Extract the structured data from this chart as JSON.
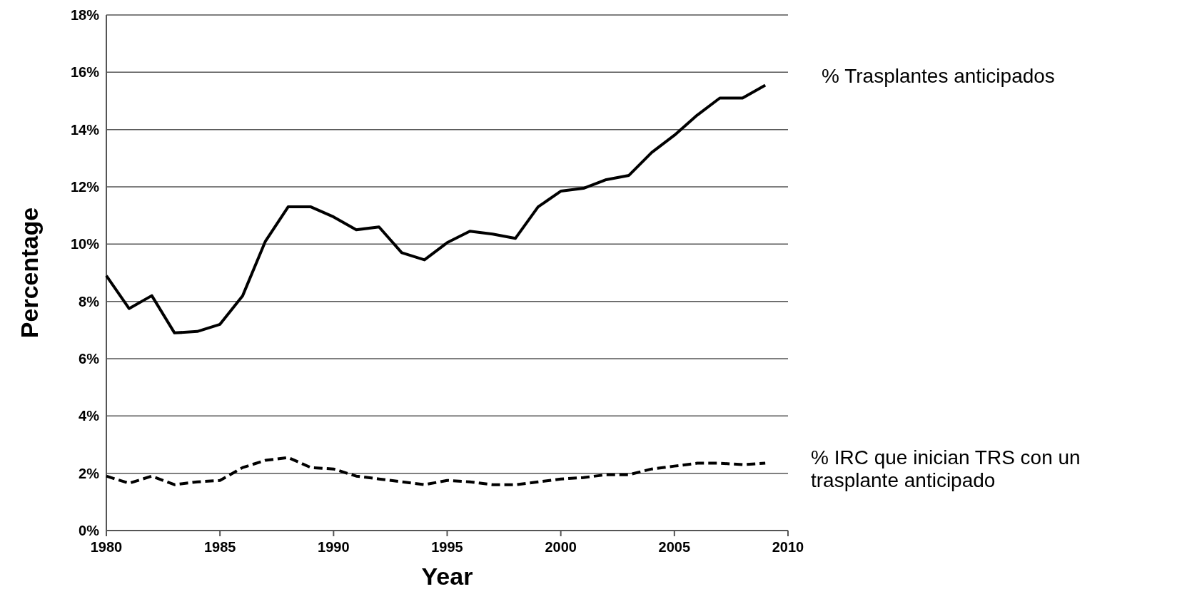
{
  "chart_data": {
    "type": "line",
    "xlabel": "Year",
    "ylabel": "Percentage",
    "x": [
      1980,
      1981,
      1982,
      1983,
      1984,
      1985,
      1986,
      1987,
      1988,
      1989,
      1990,
      1991,
      1992,
      1993,
      1994,
      1995,
      1996,
      1997,
      1998,
      1999,
      2000,
      2001,
      2002,
      2003,
      2004,
      2005,
      2006,
      2007,
      2008,
      2009
    ],
    "series": [
      {
        "name": "% Trasplantes anticipados",
        "color": "#000000",
        "line_style": "solid",
        "values": [
          8.9,
          7.75,
          8.2,
          6.9,
          6.95,
          7.2,
          8.2,
          10.1,
          11.3,
          11.3,
          10.95,
          10.5,
          10.6,
          9.7,
          9.45,
          10.05,
          10.45,
          10.35,
          10.2,
          11.3,
          11.85,
          11.95,
          12.25,
          12.4,
          13.2,
          13.8,
          14.5,
          15.1,
          15.1,
          15.55
        ]
      },
      {
        "name": "% IRC que inician TRS con un trasplante anticipado",
        "color": "#000000",
        "line_style": "dashed",
        "values": [
          1.9,
          1.65,
          1.9,
          1.6,
          1.7,
          1.75,
          2.2,
          2.45,
          2.55,
          2.2,
          2.15,
          1.9,
          1.8,
          1.7,
          1.6,
          1.75,
          1.7,
          1.6,
          1.6,
          1.7,
          1.8,
          1.85,
          1.95,
          1.95,
          2.15,
          2.25,
          2.35,
          2.35,
          2.3,
          2.35
        ]
      }
    ],
    "xlim": [
      1980,
      2010
    ],
    "xticks": [
      1980,
      1985,
      1990,
      1995,
      2000,
      2005,
      2010
    ],
    "ylim": [
      0,
      18
    ],
    "yticks": [
      {
        "value": 0,
        "label": "0%"
      },
      {
        "value": 2,
        "label": "2%"
      },
      {
        "value": 4,
        "label": "4%"
      },
      {
        "value": 6,
        "label": "6%"
      },
      {
        "value": 8,
        "label": "8%"
      },
      {
        "value": 10,
        "label": "10%"
      },
      {
        "value": 12,
        "label": "12%"
      },
      {
        "value": 14,
        "label": "14%"
      },
      {
        "value": 16,
        "label": "16%"
      },
      {
        "value": 18,
        "label": "18%"
      }
    ],
    "grid": "y",
    "legend": false,
    "marker": "none"
  }
}
